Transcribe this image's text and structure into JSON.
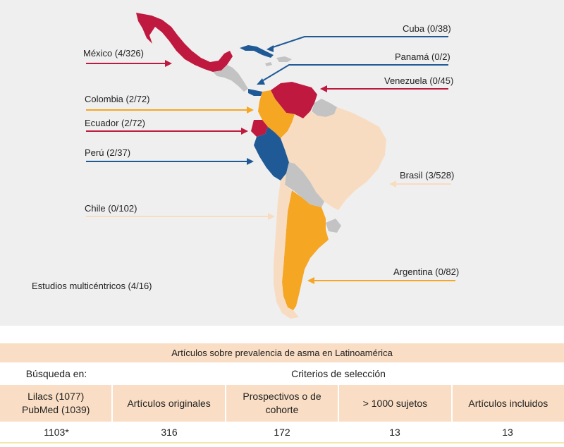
{
  "map": {
    "colors": {
      "red": "#c0193f",
      "blue": "#1f5a96",
      "orange": "#f5a623",
      "peach": "#f8dcc2",
      "gray": "#c3c3c3",
      "background": "#efefef"
    },
    "legend_scale": "count of articles per country shown as (included/total)",
    "countries": [
      {
        "name": "Cuba (0/38)",
        "color": "blue"
      },
      {
        "name": "México (4/326)",
        "color": "red"
      },
      {
        "name": "Panamá (0/2)",
        "color": "blue"
      },
      {
        "name": "Venezuela (0/45)",
        "color": "red"
      },
      {
        "name": "Colombia (2/72)",
        "color": "orange"
      },
      {
        "name": "Ecuador (2/72)",
        "color": "red"
      },
      {
        "name": "Perú (2/37)",
        "color": "blue"
      },
      {
        "name": "Brasil (3/528)",
        "color": "peach"
      },
      {
        "name": "Chile (0/102)",
        "color": "peach"
      },
      {
        "name": "Argentina (0/82)",
        "color": "orange"
      }
    ],
    "multicenter_label": "Estudios multicéntricos (4/16)"
  },
  "table": {
    "title": "Artículos sobre prevalencia de asma en Latinoamérica",
    "search_header": "Búsqueda en:",
    "criteria_header": "Criterios de selección",
    "columns": [
      {
        "line1": "Lilacs (1077)",
        "line2": "PubMed (1039)",
        "value": "1103*"
      },
      {
        "line1": "Artículos originales",
        "line2": "",
        "value": "316"
      },
      {
        "line1": "Prospectivos o de",
        "line2": "cohorte",
        "value": "172"
      },
      {
        "line1": "> 1000 sujetos",
        "line2": "",
        "value": "13"
      },
      {
        "line1": "Artículos incluidos",
        "line2": "",
        "value": "13"
      }
    ]
  }
}
